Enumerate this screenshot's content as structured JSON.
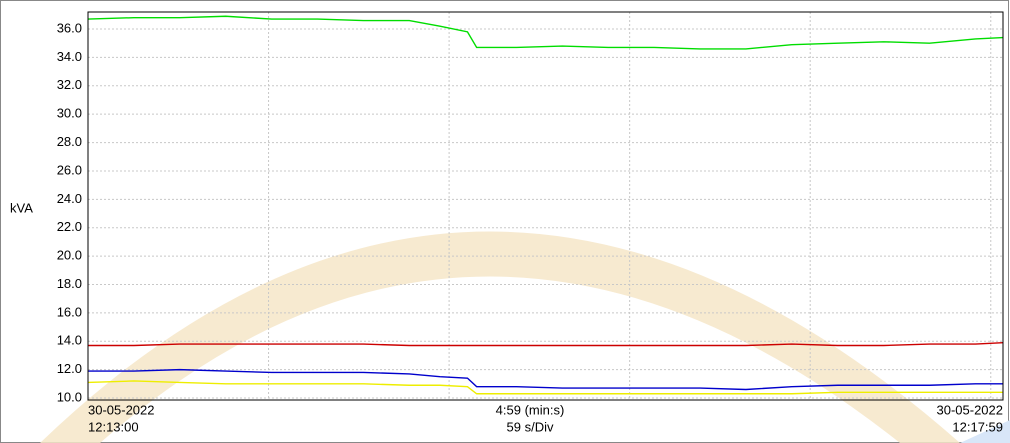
{
  "chart_data": {
    "type": "line",
    "y_label": "kVA",
    "x_labels": {
      "start": [
        "30-05-2022",
        "12:13:00"
      ],
      "middle": [
        "4:59 (min:s)",
        "59 s/Div"
      ],
      "end": [
        "30-05-2022",
        "12:17:59"
      ]
    },
    "x": [
      0,
      15,
      30,
      45,
      60,
      75,
      90,
      105,
      115,
      124,
      127,
      140,
      155,
      170,
      185,
      200,
      215,
      230,
      245,
      260,
      275,
      290,
      299
    ],
    "xlim": [
      0,
      299
    ],
    "xticks": [
      59,
      118,
      177,
      236,
      295
    ],
    "ylim": [
      9.86,
      37.2
    ],
    "yticks": [
      {
        "value": 10,
        "label": "10.0"
      },
      {
        "value": 12,
        "label": "12.0"
      },
      {
        "value": 14,
        "label": "14.0"
      },
      {
        "value": 16,
        "label": "16.0"
      },
      {
        "value": 18,
        "label": "18.0"
      },
      {
        "value": 20,
        "label": "20.0"
      },
      {
        "value": 22,
        "label": "22.0"
      },
      {
        "value": 24,
        "label": "24.0"
      },
      {
        "value": 26,
        "label": "26.0"
      },
      {
        "value": 28,
        "label": "28.0"
      },
      {
        "value": 30,
        "label": "30.0"
      },
      {
        "value": 32,
        "label": "32.0"
      },
      {
        "value": 34,
        "label": "34.0"
      },
      {
        "value": 36,
        "label": "36.0"
      }
    ],
    "grid": true,
    "series": [
      {
        "color": "#00dd00",
        "values": [
          36.7,
          36.8,
          36.8,
          36.9,
          36.7,
          36.7,
          36.6,
          36.6,
          36.2,
          35.8,
          34.7,
          34.7,
          34.8,
          34.7,
          34.7,
          34.6,
          34.6,
          34.9,
          35.0,
          35.1,
          35.0,
          35.3,
          35.4
        ]
      },
      {
        "color": "#cc0000",
        "values": [
          13.7,
          13.7,
          13.8,
          13.8,
          13.8,
          13.8,
          13.8,
          13.7,
          13.7,
          13.7,
          13.7,
          13.7,
          13.7,
          13.7,
          13.7,
          13.7,
          13.7,
          13.8,
          13.7,
          13.7,
          13.8,
          13.8,
          13.9
        ]
      },
      {
        "color": "#0000cc",
        "values": [
          11.9,
          11.9,
          12.0,
          11.9,
          11.8,
          11.8,
          11.8,
          11.7,
          11.5,
          11.4,
          10.8,
          10.8,
          10.7,
          10.7,
          10.7,
          10.7,
          10.6,
          10.8,
          10.9,
          10.9,
          10.9,
          11.0,
          11.0
        ]
      },
      {
        "color": "#eeee00",
        "values": [
          11.1,
          11.2,
          11.1,
          11.0,
          11.0,
          11.0,
          11.0,
          10.9,
          10.9,
          10.8,
          10.3,
          10.3,
          10.3,
          10.3,
          10.3,
          10.3,
          10.3,
          10.3,
          10.4,
          10.4,
          10.4,
          10.4,
          10.4
        ]
      }
    ]
  }
}
